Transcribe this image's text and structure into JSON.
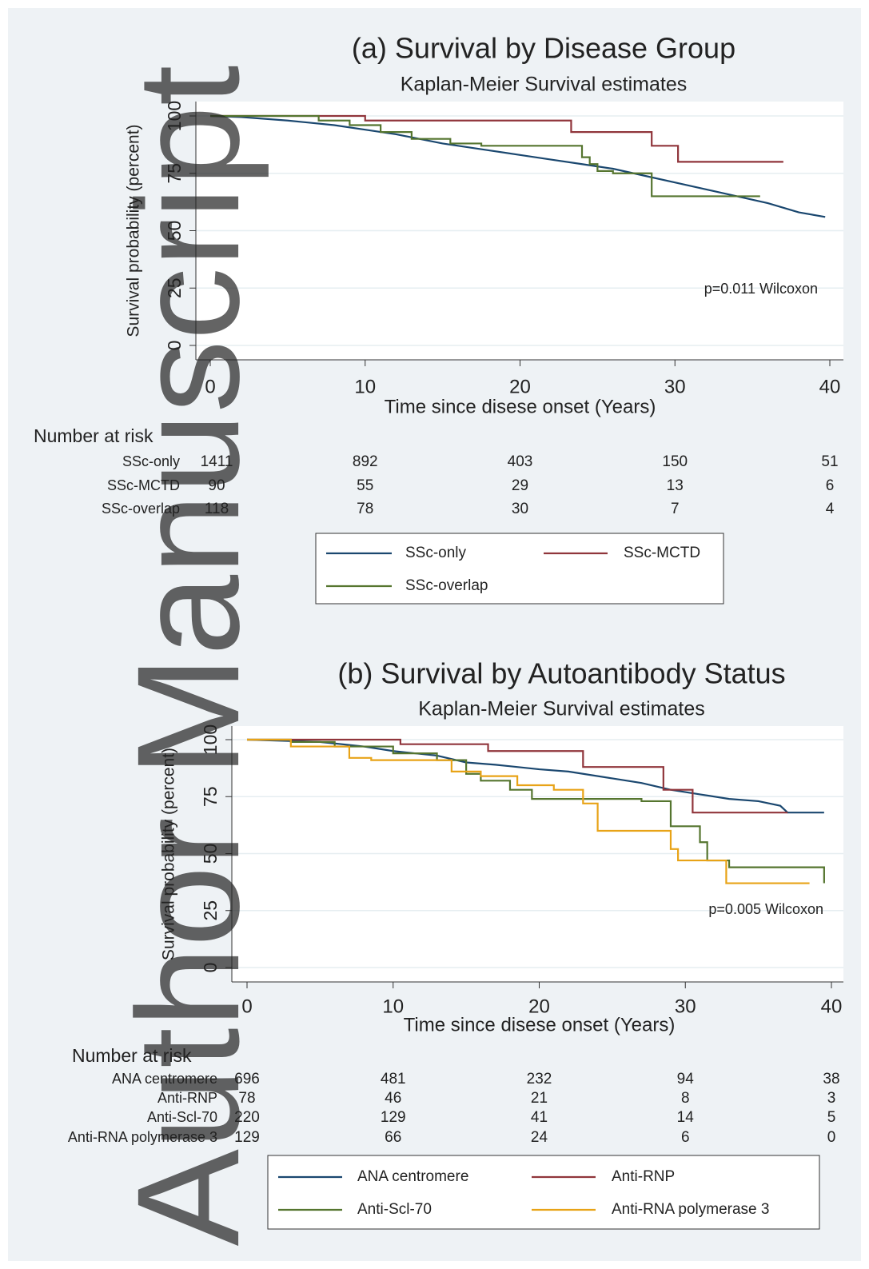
{
  "watermark": "Author Manuscript",
  "chart_data": [
    {
      "type": "line",
      "title": "(a) Survival by Disease Group",
      "subtitle": "Kaplan-Meier Survival estimates",
      "xlabel": "Time since disese onset (Years)",
      "ylabel": "Survival probability (percent)",
      "annotation": "p=0.011 Wilcoxon",
      "risk_title": "Number at risk",
      "xlim": [
        0,
        40
      ],
      "ylim": [
        0,
        100
      ],
      "xticks": [
        0,
        10,
        20,
        30,
        40
      ],
      "yticks": [
        0,
        25,
        50,
        75,
        100
      ],
      "grid": true,
      "series": [
        {
          "name": "SSc-only",
          "color": "#1a476f",
          "x": [
            0,
            2,
            5,
            8,
            10,
            12,
            15,
            18,
            20,
            22,
            24,
            26,
            28,
            30,
            32,
            34,
            36,
            38,
            39.7
          ],
          "values": [
            100,
            99.5,
            98,
            96,
            94,
            92,
            88,
            85,
            83,
            81,
            79,
            77,
            74,
            71,
            68,
            65,
            62,
            58,
            56
          ],
          "at_risk": [
            1411,
            892,
            403,
            150,
            51
          ]
        },
        {
          "name": "SSc-MCTD",
          "color": "#90353b",
          "x": [
            0,
            10,
            10,
            23.3,
            23.3,
            28.5,
            28.5,
            30.2,
            30.2,
            37
          ],
          "values": [
            100,
            100,
            98,
            98,
            93,
            93,
            87,
            87,
            80,
            80
          ],
          "at_risk": [
            90,
            55,
            29,
            13,
            6
          ]
        },
        {
          "name": "SSc-overlap",
          "color": "#55752f",
          "x": [
            0,
            7,
            7,
            9,
            9,
            11,
            11,
            13,
            13,
            15.5,
            15.5,
            17.5,
            17.5,
            24,
            24,
            24.5,
            24.5,
            25,
            25,
            26,
            26,
            28.5,
            28.5,
            35.5
          ],
          "values": [
            100,
            100,
            98,
            98,
            96,
            96,
            93,
            93,
            90,
            90,
            88,
            88,
            87,
            87,
            82,
            82,
            79,
            79,
            76,
            76,
            75,
            75,
            65,
            65
          ],
          "at_risk": [
            118,
            78,
            30,
            7,
            4
          ]
        }
      ]
    },
    {
      "type": "line",
      "title": "(b) Survival by Autoantibody Status",
      "subtitle": "Kaplan-Meier Survival estimates",
      "xlabel": "Time since disese onset (Years)",
      "ylabel": "Survival probability (percent)",
      "annotation": "p=0.005 Wilcoxon",
      "risk_title": "Number at risk",
      "xlim": [
        0,
        40
      ],
      "ylim": [
        0,
        100
      ],
      "xticks": [
        0,
        10,
        20,
        30,
        40
      ],
      "yticks": [
        0,
        25,
        50,
        75,
        100
      ],
      "grid": true,
      "series": [
        {
          "name": "ANA centromere",
          "color": "#1a476f",
          "x": [
            0,
            5,
            8,
            10,
            13,
            15,
            17,
            20,
            22,
            25,
            27,
            29,
            31,
            33,
            35,
            36.5,
            37,
            39.5
          ],
          "values": [
            100,
            99,
            97,
            95,
            93,
            90,
            89,
            87,
            86,
            83,
            81,
            78,
            76,
            74,
            73,
            71,
            68,
            68
          ],
          "at_risk": [
            696,
            481,
            232,
            94,
            38
          ]
        },
        {
          "name": "Anti-RNP",
          "color": "#90353b",
          "x": [
            0,
            10.5,
            10.5,
            16.5,
            16.5,
            23,
            23,
            28.5,
            28.5,
            30.5,
            30.5,
            37
          ],
          "values": [
            100,
            100,
            98,
            98,
            95,
            95,
            88,
            88,
            78,
            78,
            68,
            68
          ],
          "at_risk": [
            78,
            46,
            21,
            8,
            3
          ]
        },
        {
          "name": "Anti-Scl-70",
          "color": "#55752f",
          "x": [
            0,
            3,
            3,
            6,
            6,
            10,
            10,
            13,
            13,
            15,
            15,
            16,
            16,
            18,
            18,
            19.5,
            19.5,
            27,
            27,
            29,
            29,
            31,
            31,
            31.5,
            31.5,
            33,
            33,
            39.5,
            39.5
          ],
          "values": [
            100,
            100,
            99,
            99,
            97,
            97,
            94,
            94,
            91,
            91,
            85,
            85,
            82,
            82,
            78,
            78,
            74,
            74,
            73,
            73,
            62,
            62,
            55,
            55,
            47,
            47,
            44,
            44,
            37
          ],
          "at_risk": [
            220,
            129,
            41,
            14,
            5
          ]
        },
        {
          "name": "Anti-RNA polymerase 3",
          "color": "#e8a317",
          "x": [
            0,
            3,
            3,
            7,
            7,
            8.5,
            8.5,
            14,
            14,
            16,
            16,
            18.5,
            18.5,
            21,
            21,
            23,
            23,
            24,
            24,
            29,
            29,
            29.5,
            29.5,
            32.8,
            32.8,
            38.5
          ],
          "values": [
            100,
            100,
            97,
            97,
            92,
            92,
            91,
            91,
            86,
            86,
            84,
            84,
            80,
            80,
            78,
            78,
            72,
            72,
            60,
            60,
            52,
            52,
            47,
            47,
            37,
            37
          ],
          "at_risk": [
            129,
            66,
            24,
            6,
            0
          ]
        }
      ]
    }
  ]
}
